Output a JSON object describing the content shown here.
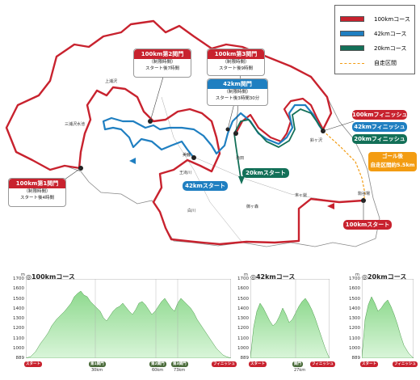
{
  "legend": {
    "items": [
      {
        "label": "100kmコース",
        "color": "#c8222e",
        "style": "solid"
      },
      {
        "label": "42kmコース",
        "color": "#1f7fc1",
        "style": "solid"
      },
      {
        "label": "20kmコース",
        "color": "#137058",
        "style": "solid"
      },
      {
        "label": "自走区間",
        "color": "#f39c12",
        "style": "dashed"
      }
    ]
  },
  "map_labels": {
    "gate2_title": "100km第2関門",
    "gate2_sub1": "（制限時間）",
    "gate2_sub2": "スタート後7時間",
    "gate3_title": "100km第3関門",
    "gate3_sub1": "（制限時間）",
    "gate3_sub2": "スタート後9時間",
    "gate42_title": "42km関門",
    "gate42_sub1": "（制限時間）",
    "gate42_sub2": "スタート後3時間30分",
    "gate1_title": "100km第1関門",
    "gate1_sub1": "（制限時間）",
    "gate1_sub2": "スタート後4時間",
    "finish100": "100kmフィニッシュ",
    "finish42": "42kmフィニッシュ",
    "finish20": "20kmフィニッシュ",
    "goal_after": "ゴール後",
    "goal_self": "自走区間約5.5km",
    "start42": "42kmスタート",
    "start20": "20kmスタート",
    "start100": "100kmスタート"
  },
  "places": {
    "kamiurasawa": "上浦沢",
    "miurasawa": "三浦沢水池",
    "honou": "美鹿",
    "ouken": "王滝川",
    "takita": "滝田",
    "hakusen": "白川",
    "ohma": "御ヶ森",
    "sueyama": "末ヶ嶽",
    "suzugasawa": "鈴ヶ沢",
    "yuugen": "駒谷場"
  },
  "profiles": {
    "p100": {
      "title": "◎100kmコース",
      "unit": "m",
      "yticks": [
        "1700",
        "1600",
        "1500",
        "1400",
        "1300",
        "1200",
        "1100",
        "1000",
        "889"
      ],
      "start_label": "スタート",
      "finish_label": "フィニッシュ",
      "gate1_label": "第1関門",
      "gate2_label": "第2関門",
      "gate3_label": "第3関門",
      "km30": "30km",
      "km60": "60km",
      "km73": "73km"
    },
    "p42": {
      "title": "◎42kmコース",
      "unit": "m",
      "yticks": [
        "1700",
        "1600",
        "1500",
        "1400",
        "1300",
        "1200",
        "1100",
        "1000",
        "889"
      ],
      "start_label": "スタート",
      "finish_label": "フィニッシュ",
      "gate_label": "関門",
      "km27": "27km"
    },
    "p20": {
      "title": "◎20kmコース",
      "unit": "m",
      "yticks": [
        "1700",
        "1600",
        "1500",
        "1400",
        "1300",
        "1200",
        "1100",
        "1000",
        "889"
      ],
      "start_label": "スタート",
      "finish_label": "フィニッシュ"
    }
  },
  "colors": {
    "red": "#c8222e",
    "blue": "#1f7fc1",
    "green": "#137058",
    "orange": "#f39c12"
  }
}
